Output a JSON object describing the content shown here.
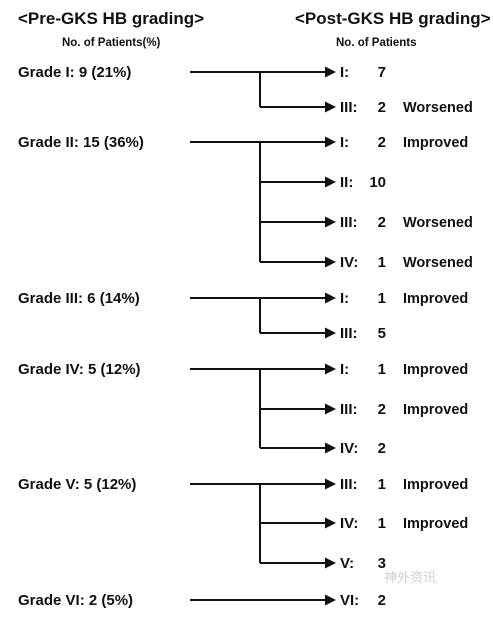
{
  "header": {
    "pre_title": "<Pre-GKS HB grading>",
    "pre_sub": "No. of Patients(%)",
    "post_title": "<Post-GKS HB grading>",
    "post_sub": "No. of Patients"
  },
  "groups": [
    {
      "pre": "Grade I: 9 (21%)",
      "outcomes": [
        {
          "grade": "I:",
          "count": "7",
          "status": ""
        },
        {
          "grade": "III:",
          "count": "2",
          "status": "Worsened"
        }
      ]
    },
    {
      "pre": "Grade II: 15 (36%)",
      "outcomes": [
        {
          "grade": "I:",
          "count": "2",
          "status": "Improved"
        },
        {
          "grade": "II:",
          "count": "10",
          "status": ""
        },
        {
          "grade": "III:",
          "count": "2",
          "status": "Worsened"
        },
        {
          "grade": "IV:",
          "count": "1",
          "status": "Worsened"
        }
      ]
    },
    {
      "pre": "Grade III: 6 (14%)",
      "outcomes": [
        {
          "grade": "I:",
          "count": "1",
          "status": "Improved"
        },
        {
          "grade": "III:",
          "count": "5",
          "status": ""
        }
      ]
    },
    {
      "pre": "Grade IV: 5 (12%)",
      "outcomes": [
        {
          "grade": "I:",
          "count": "1",
          "status": "Improved"
        },
        {
          "grade": "III:",
          "count": "2",
          "status": "Improved"
        },
        {
          "grade": "IV:",
          "count": "2",
          "status": ""
        }
      ]
    },
    {
      "pre": "Grade V: 5 (12%)",
      "outcomes": [
        {
          "grade": "III:",
          "count": "1",
          "status": "Improved"
        },
        {
          "grade": "IV:",
          "count": "1",
          "status": "Improved"
        },
        {
          "grade": "V:",
          "count": "3",
          "status": ""
        }
      ]
    },
    {
      "pre": "Grade VI: 2 (5%)",
      "outcomes": [
        {
          "grade": "VI:",
          "count": "2",
          "status": ""
        }
      ]
    }
  ],
  "watermark": "神外资讯"
}
